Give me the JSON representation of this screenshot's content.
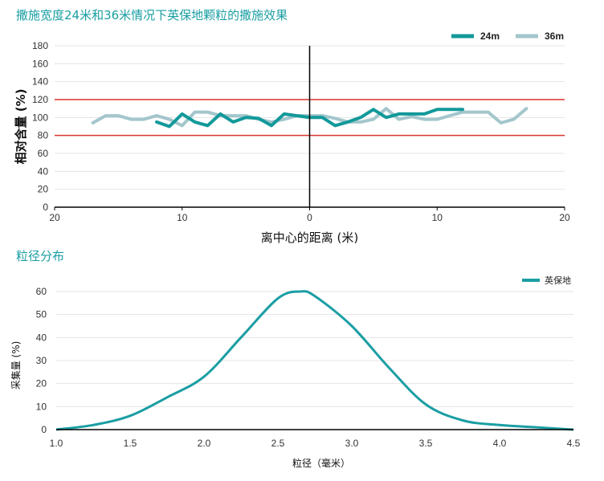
{
  "chart_data": [
    {
      "type": "line",
      "title": "撒施宽度24米和36米情况下英保地颗粒的撒施效果",
      "xlabel": "离中心的距离 (米)",
      "ylabel": "相对含量 (%)",
      "xlim": [
        -20,
        20
      ],
      "ylim": [
        0,
        180
      ],
      "x_tick_labels": [
        "20",
        "10",
        "0",
        "10",
        "20"
      ],
      "y_tick_labels": [
        "0",
        "20",
        "40",
        "60",
        "80",
        "100",
        "120",
        "140",
        "160",
        "180"
      ],
      "reference_lines": [
        80,
        120
      ],
      "reference_color": "#d9342b",
      "center_line_x": 0,
      "legend_position": "top-right",
      "series": [
        {
          "name": "24m",
          "color": "#13999a",
          "x": [
            -12,
            -11,
            -10,
            -9,
            -8,
            -7,
            -6,
            -5,
            -4,
            -3,
            -2,
            -1,
            0,
            1,
            2,
            3,
            4,
            5,
            6,
            7,
            8,
            9,
            10,
            11,
            12
          ],
          "y": [
            95,
            90,
            104,
            95,
            91,
            104,
            95,
            100,
            99,
            91,
            104,
            102,
            100,
            100,
            91,
            95,
            100,
            109,
            100,
            104,
            104,
            104,
            109,
            109,
            109
          ]
        },
        {
          "name": "36m",
          "color": "#a3c6cc",
          "x": [
            -17,
            -16,
            -15,
            -14,
            -13,
            -12,
            -11,
            -10,
            -9,
            -8,
            -7,
            -6,
            -5,
            -4,
            -3,
            -2,
            -1,
            0,
            1,
            2,
            3,
            4,
            5,
            6,
            7,
            8,
            9,
            10,
            11,
            12,
            13,
            14,
            15,
            16,
            17
          ],
          "y": [
            94,
            102,
            102,
            98,
            98,
            102,
            98,
            91,
            106,
            106,
            102,
            102,
            102,
            98,
            95,
            98,
            102,
            102,
            102,
            99,
            95,
            95,
            98,
            110,
            98,
            101,
            98,
            98,
            102,
            106,
            106,
            106,
            94,
            98,
            110
          ]
        }
      ]
    },
    {
      "type": "line",
      "title": "粒径分布",
      "xlabel": "粒径（毫米）",
      "ylabel": "采集量 (%)",
      "xlim": [
        1.0,
        4.5
      ],
      "ylim": [
        0,
        65
      ],
      "x_tick_labels": [
        "1.0",
        "1.5",
        "2.0",
        "2.5",
        "3.0",
        "3.5",
        "4.0",
        "4.5"
      ],
      "y_tick_labels": [
        "0",
        "10",
        "20",
        "30",
        "40",
        "50",
        "60"
      ],
      "legend_position": "top-right",
      "series": [
        {
          "name": "英保地",
          "color": "#1a9ea3",
          "x": [
            1.0,
            1.25,
            1.5,
            1.75,
            2.0,
            2.25,
            2.5,
            2.65,
            2.75,
            3.0,
            3.25,
            3.5,
            3.75,
            4.0,
            4.25,
            4.5
          ],
          "y": [
            0,
            2,
            6,
            14,
            23,
            40,
            57,
            60,
            58,
            45,
            27,
            11,
            4,
            2,
            1,
            0
          ]
        }
      ]
    }
  ]
}
